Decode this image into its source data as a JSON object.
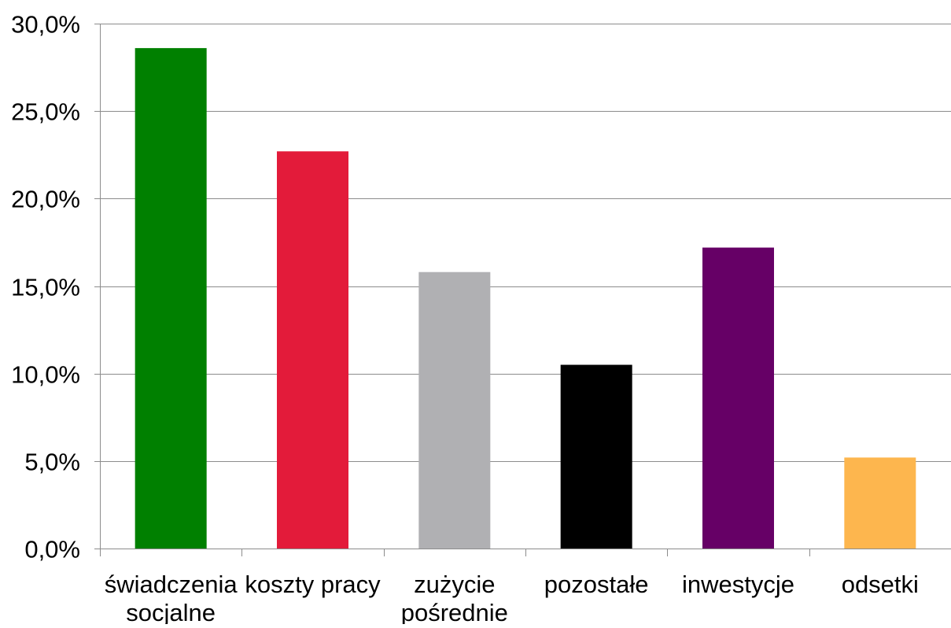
{
  "chart_data": {
    "type": "bar",
    "title": "",
    "xlabel": "",
    "ylabel": "",
    "categories": [
      [
        "świadczenia",
        "socjalne"
      ],
      [
        "koszty pracy"
      ],
      [
        "zużycie",
        "pośrednie"
      ],
      [
        "pozostałe"
      ],
      [
        "inwestycje"
      ],
      [
        "odsetki"
      ]
    ],
    "values": [
      28.6,
      22.7,
      15.8,
      10.5,
      17.2,
      5.2
    ],
    "colors": [
      "#008000",
      "#E31B3A",
      "#B0B0B3",
      "#000000",
      "#660066",
      "#FDB64E"
    ],
    "ylim": [
      0,
      30
    ],
    "yticks": [
      0,
      5,
      10,
      15,
      20,
      25,
      30
    ],
    "ytick_labels": [
      "0,0%",
      "5,0%",
      "10,0%",
      "15,0%",
      "20,0%",
      "25,0%",
      "30,0%"
    ],
    "grid": true,
    "legend": "none"
  }
}
